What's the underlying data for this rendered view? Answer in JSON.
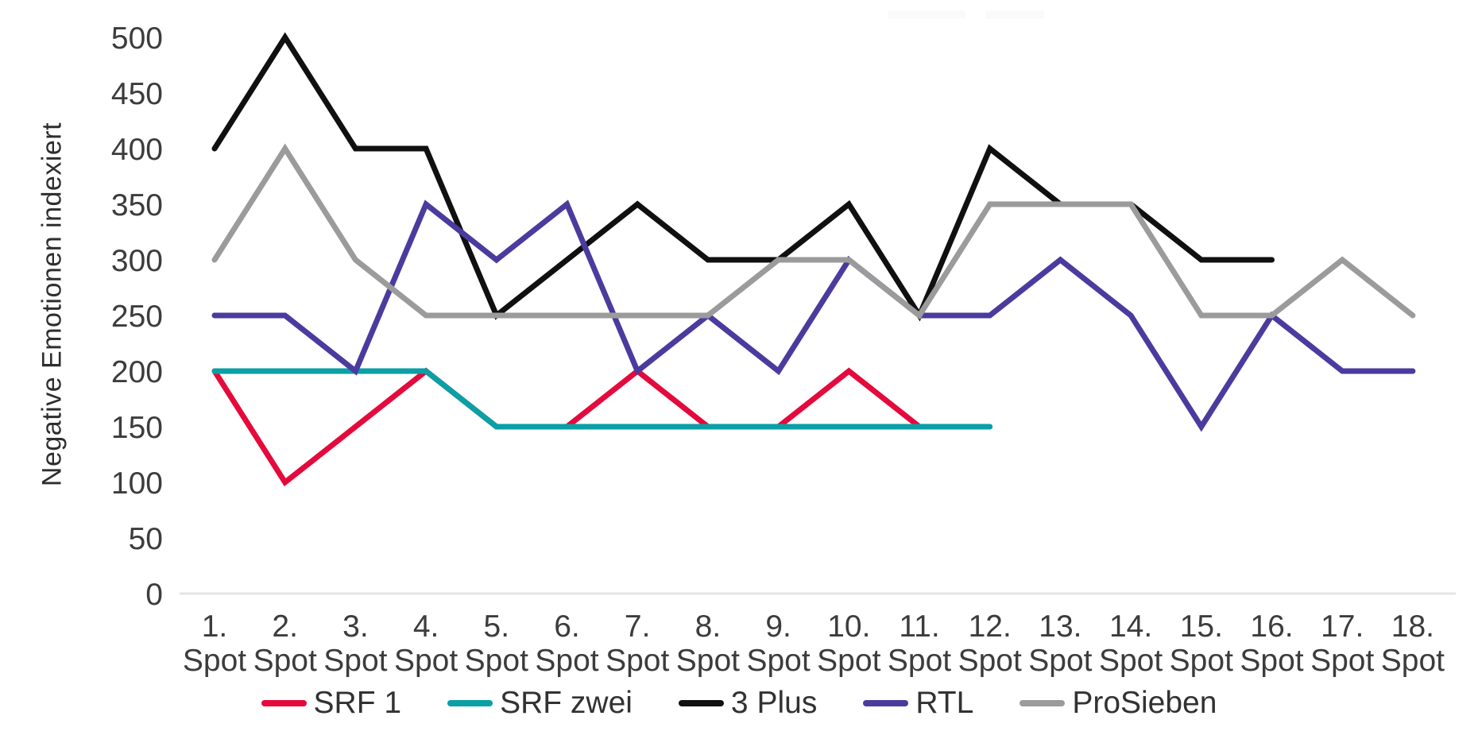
{
  "chart_data": {
    "type": "line",
    "categories": [
      "1. Spot",
      "2. Spot",
      "3. Spot",
      "4. Spot",
      "5. Spot",
      "6. Spot",
      "7. Spot",
      "8. Spot",
      "9. Spot",
      "10. Spot",
      "11. Spot",
      "12. Spot",
      "13. Spot",
      "14. Spot",
      "15. Spot",
      "16. Spot",
      "17. Spot",
      "18. Spot"
    ],
    "series": [
      {
        "name": "SRF 1",
        "color": "#E40A3C",
        "values": [
          200,
          100,
          150,
          200,
          150,
          150,
          200,
          150,
          150,
          200,
          150
        ]
      },
      {
        "name": "SRF zwei",
        "color": "#0B9FA6",
        "values": [
          200,
          200,
          200,
          200,
          150,
          150,
          150,
          150,
          150,
          150,
          150,
          150
        ]
      },
      {
        "name": "3 Plus",
        "color": "#101010",
        "values": [
          400,
          500,
          400,
          400,
          250,
          300,
          350,
          300,
          300,
          350,
          250,
          400,
          350,
          350,
          300,
          300
        ]
      },
      {
        "name": "RTL",
        "color": "#4B3B9E",
        "values": [
          250,
          250,
          200,
          350,
          300,
          350,
          200,
          250,
          200,
          300,
          250,
          250,
          300,
          250,
          150,
          250,
          200,
          200
        ]
      },
      {
        "name": "ProSieben",
        "color": "#9B9B9B",
        "values": [
          300,
          400,
          300,
          250,
          250,
          250,
          250,
          250,
          300,
          300,
          250,
          350,
          350,
          350,
          250,
          250,
          300,
          250
        ]
      }
    ],
    "title": "",
    "xlabel": "",
    "ylabel": "Negative Emotionen indexiert",
    "ylim": [
      0,
      500
    ],
    "y_ticks": [
      0,
      50,
      100,
      150,
      200,
      250,
      300,
      350,
      400,
      450,
      500
    ],
    "grid": false,
    "legend_position": "bottom"
  },
  "axis_style": {
    "tick_color": "#3c3c3c",
    "baseline_color": "#e4e4e4"
  }
}
